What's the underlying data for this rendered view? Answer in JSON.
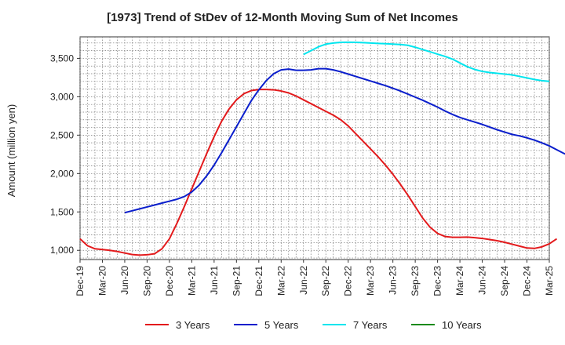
{
  "chart_data": {
    "type": "line",
    "title": "[1973]  Trend of StDev of 12-Month Moving Sum of Net Incomes",
    "xlabel": "",
    "ylabel": "Amount (million yen)",
    "x_tick_labels": [
      "Dec-19",
      "Mar-20",
      "Jun-20",
      "Sep-20",
      "Dec-20",
      "Mar-21",
      "Jun-21",
      "Sep-21",
      "Dec-21",
      "Mar-22",
      "Jun-22",
      "Sep-22",
      "Dec-22",
      "Mar-23",
      "Jun-23",
      "Sep-23",
      "Dec-23",
      "Mar-24",
      "Jun-24",
      "Sep-24",
      "Dec-24",
      "Mar-25"
    ],
    "y_ticks": [
      1000,
      1500,
      2000,
      2500,
      3000,
      3500
    ],
    "y_tick_labels": [
      "1,000",
      "1,500",
      "2,000",
      "2,500",
      "3,000",
      "3,500"
    ],
    "ylim": [
      880,
      3780
    ],
    "grid": true,
    "legend_position": "bottom",
    "series": [
      {
        "name": "3 Years",
        "color": "#e31a1c",
        "values": [
          1150,
          1060,
          1020,
          1010,
          1000,
          985,
          965,
          945,
          938,
          942,
          955,
          1020,
          1150,
          1350,
          1570,
          1800,
          2030,
          2260,
          2480,
          2680,
          2840,
          2960,
          3040,
          3080,
          3095,
          3095,
          3090,
          3075,
          3050,
          3010,
          2960,
          2910,
          2860,
          2810,
          2760,
          2700,
          2620,
          2520,
          2420,
          2320,
          2220,
          2110,
          1990,
          1860,
          1720,
          1570,
          1420,
          1300,
          1220,
          1180,
          1170,
          1170,
          1172,
          1165,
          1155,
          1140,
          1125,
          1105,
          1080,
          1055,
          1030,
          1025,
          1045,
          1085,
          1150
        ]
      },
      {
        "name": "5 Years",
        "color": "#0a1ecc",
        "values": [
          null,
          null,
          null,
          null,
          null,
          null,
          null,
          null,
          null,
          null,
          null,
          null,
          null,
          null,
          null,
          null,
          null,
          null,
          null,
          null,
          null,
          null,
          null,
          null,
          null,
          null,
          null,
          null,
          null,
          null,
          null,
          null,
          null,
          null,
          null,
          null,
          null,
          null,
          null,
          null,
          null,
          null,
          null,
          null,
          null,
          null,
          null,
          null,
          null,
          null,
          null,
          null,
          null,
          null,
          null,
          null,
          null,
          null,
          null,
          null,
          null,
          null,
          null,
          null,
          null
        ],
        "points": [
          1490,
          1515,
          1540,
          1565,
          1590,
          1615,
          1640,
          1665,
          1700,
          1760,
          1850,
          1970,
          2110,
          2270,
          2440,
          2610,
          2780,
          2950,
          3090,
          3210,
          3300,
          3350,
          3360,
          3345,
          3345,
          3350,
          3365,
          3365,
          3350,
          3325,
          3295,
          3265,
          3235,
          3205,
          3175,
          3145,
          3110,
          3075,
          3035,
          2995,
          2955,
          2910,
          2865,
          2815,
          2770,
          2730,
          2700,
          2670,
          2640,
          2605,
          2570,
          2540,
          2510,
          2490,
          2465,
          2435,
          2400,
          2360,
          2310,
          2260,
          2220
        ]
      },
      {
        "name": "7 Years",
        "color": "#00e5ee",
        "points": [
          3550,
          3600,
          3650,
          3685,
          3700,
          3708,
          3710,
          3708,
          3705,
          3700,
          3695,
          3690,
          3685,
          3680,
          3670,
          3645,
          3615,
          3585,
          3555,
          3525,
          3490,
          3440,
          3390,
          3355,
          3330,
          3315,
          3305,
          3295,
          3285,
          3265,
          3245,
          3225,
          3210,
          3200
        ]
      },
      {
        "name": "10 Years",
        "color": "#1b8a1b",
        "points": []
      }
    ]
  }
}
